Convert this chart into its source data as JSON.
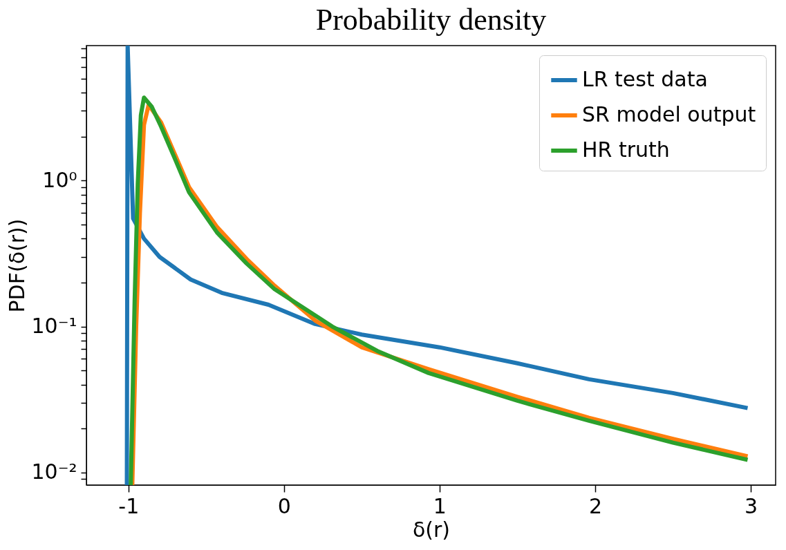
{
  "chart_data": {
    "type": "line",
    "title": "Probability density",
    "xlabel": "δ(r)",
    "ylabel": "PDF(δ(r))",
    "xlim": [
      -1.27,
      3.16
    ],
    "xticks": [
      -1,
      0,
      1,
      2,
      3
    ],
    "ylim": [
      0.0082,
      8.4
    ],
    "log": true,
    "yticks": [
      {
        "value": 0.009,
        "label": null
      },
      {
        "value": 0.01,
        "label": "10⁻²"
      },
      {
        "value": 0.02,
        "label": null
      },
      {
        "value": 0.03,
        "label": null
      },
      {
        "value": 0.04,
        "label": null
      },
      {
        "value": 0.05,
        "label": null
      },
      {
        "value": 0.06,
        "label": null
      },
      {
        "value": 0.07,
        "label": null
      },
      {
        "value": 0.08,
        "label": null
      },
      {
        "value": 0.09,
        "label": null
      },
      {
        "value": 0.1,
        "label": "10⁻¹"
      },
      {
        "value": 0.2,
        "label": null
      },
      {
        "value": 0.3,
        "label": null
      },
      {
        "value": 0.4,
        "label": null
      },
      {
        "value": 0.5,
        "label": null
      },
      {
        "value": 0.6,
        "label": null
      },
      {
        "value": 0.7,
        "label": null
      },
      {
        "value": 0.8,
        "label": null
      },
      {
        "value": 0.9,
        "label": null
      },
      {
        "value": 1,
        "label": "10⁰"
      },
      {
        "value": 2,
        "label": null
      },
      {
        "value": 3,
        "label": null
      },
      {
        "value": 4,
        "label": null
      },
      {
        "value": 5,
        "label": null
      },
      {
        "value": 6,
        "label": null
      },
      {
        "value": 7,
        "label": null
      },
      {
        "value": 8,
        "label": null
      }
    ],
    "grid": false,
    "legend": "top right",
    "series": [
      {
        "name": "LR test data",
        "color": "#1f77b4",
        "x": [
          -1.01,
          -1.005,
          -0.97,
          -0.9,
          -0.8,
          -0.6,
          -0.4,
          -0.1,
          0.2,
          0.5,
          1.0,
          1.5,
          1.96,
          2.5,
          2.98
        ],
        "values": [
          0.0082,
          8.4,
          0.55,
          0.4,
          0.3,
          0.21,
          0.17,
          0.141,
          0.104,
          0.088,
          0.072,
          0.056,
          0.0435,
          0.035,
          0.0276
        ]
      },
      {
        "name": "SR model output",
        "color": "#ff7f0e",
        "x": [
          -0.975,
          -0.95,
          -0.926,
          -0.9,
          -0.87,
          -0.79,
          -0.7,
          -0.61,
          -0.43,
          -0.24,
          -0.06,
          0.2,
          0.5,
          0.93,
          1.5,
          1.96,
          2.5,
          2.98
        ],
        "values": [
          0.0082,
          0.1,
          0.6,
          2.4,
          3.3,
          2.5,
          1.5,
          0.9,
          0.48,
          0.29,
          0.19,
          0.11,
          0.072,
          0.051,
          0.033,
          0.0237,
          0.017,
          0.0129
        ]
      },
      {
        "name": "HR truth",
        "color": "#2ca02c",
        "x": [
          -0.985,
          -0.96,
          -0.94,
          -0.92,
          -0.9,
          -0.85,
          -0.79,
          -0.7,
          -0.61,
          -0.43,
          -0.24,
          -0.06,
          0.31,
          0.6,
          0.93,
          1.5,
          1.96,
          2.5,
          2.98
        ],
        "values": [
          0.0082,
          0.15,
          0.95,
          2.8,
          3.7,
          3.2,
          2.34,
          1.4,
          0.83,
          0.44,
          0.27,
          0.18,
          0.1,
          0.068,
          0.048,
          0.031,
          0.0226,
          0.016,
          0.0122
        ]
      }
    ]
  }
}
